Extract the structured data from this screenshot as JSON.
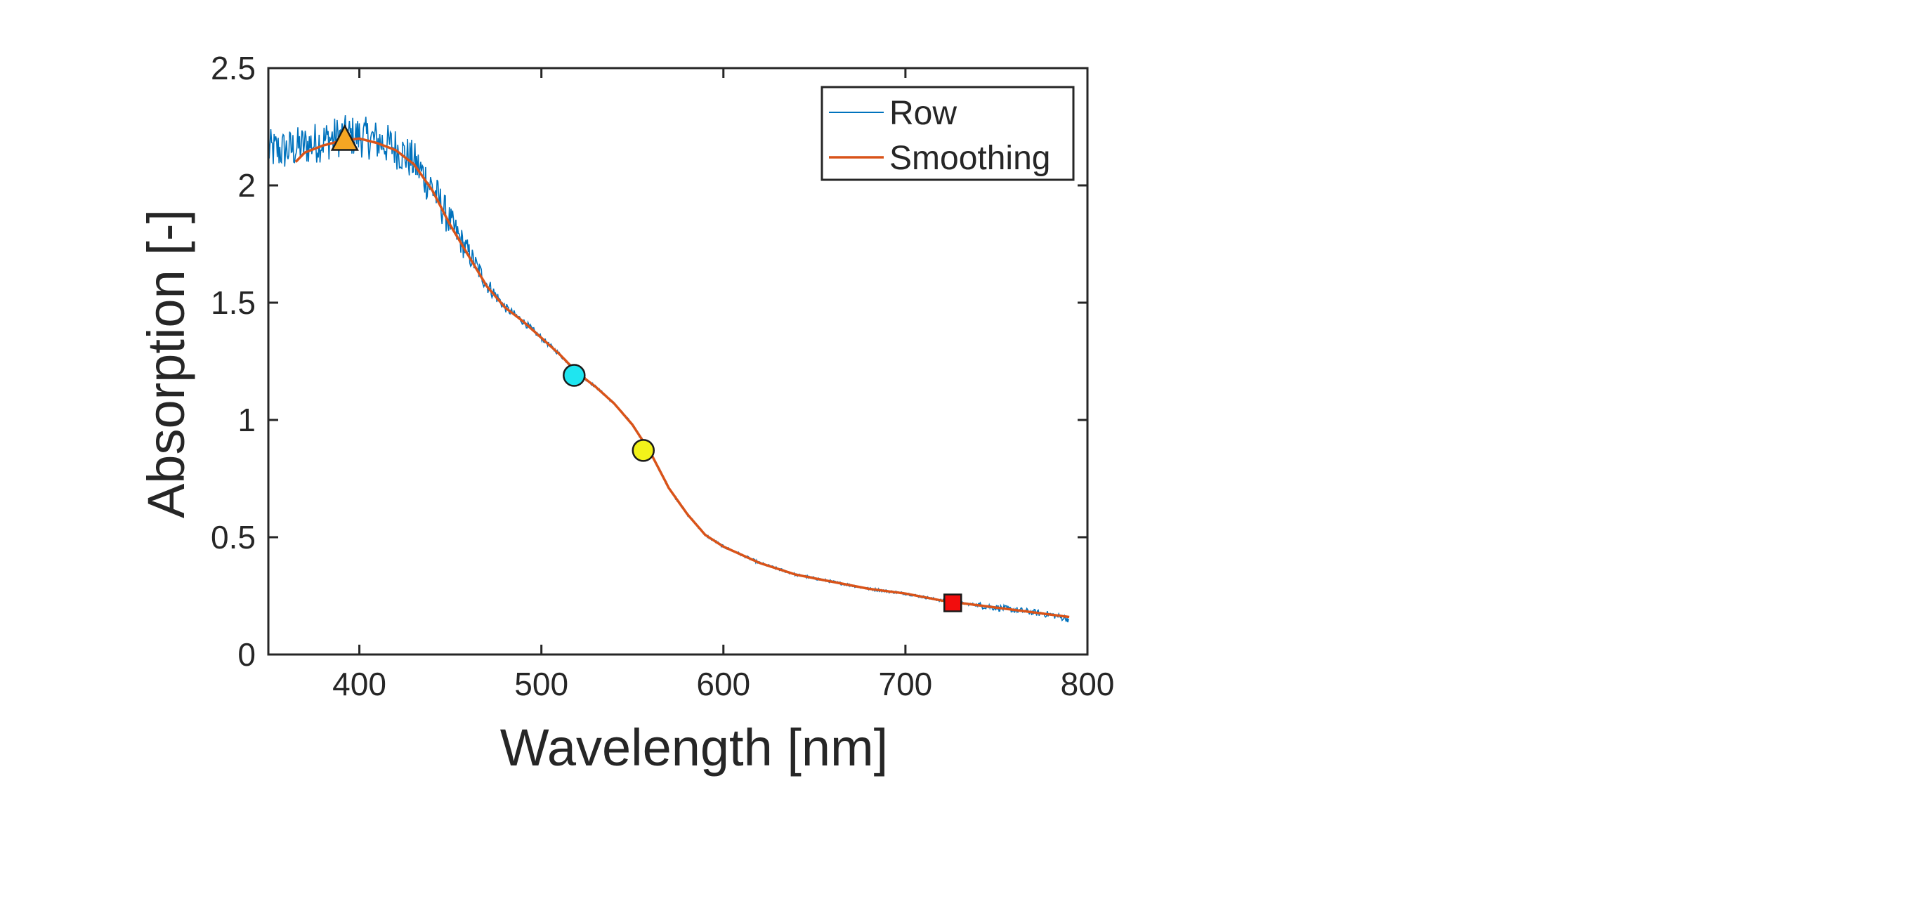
{
  "chart_data": {
    "type": "line",
    "title": "",
    "xlabel": "Wavelength [nm]",
    "ylabel": "Absorption [-]",
    "xlim": [
      350,
      800
    ],
    "ylim": [
      0,
      2.5
    ],
    "xticks": [
      400,
      500,
      600,
      700,
      800
    ],
    "yticks": [
      0,
      0.5,
      1,
      1.5,
      2,
      2.5
    ],
    "xtick_labels": [
      "400",
      "500",
      "600",
      "700",
      "800"
    ],
    "ytick_labels": [
      "0",
      "0.5",
      "1",
      "1.5",
      "2",
      "2.5"
    ],
    "grid": false,
    "box": true,
    "legend": {
      "position": "top-right",
      "entries": [
        "Row",
        "Smoothing"
      ]
    },
    "series": [
      {
        "name": "Row",
        "color": "#0072BD",
        "style": "noisy-thin",
        "x": [
          350,
          360,
          370,
          380,
          390,
          400,
          410,
          420,
          430,
          440,
          450,
          460,
          470,
          480,
          490,
          500,
          510,
          520,
          530,
          540,
          550,
          560,
          570,
          580,
          590,
          600,
          620,
          640,
          660,
          680,
          700,
          720,
          740,
          760,
          780,
          790
        ],
        "y": [
          2.15,
          2.15,
          2.17,
          2.19,
          2.21,
          2.21,
          2.19,
          2.16,
          2.1,
          1.99,
          1.84,
          1.71,
          1.58,
          1.48,
          1.42,
          1.35,
          1.28,
          1.2,
          1.14,
          1.07,
          0.98,
          0.86,
          0.71,
          0.6,
          0.51,
          0.46,
          0.39,
          0.34,
          0.31,
          0.28,
          0.26,
          0.23,
          0.21,
          0.19,
          0.17,
          0.15
        ]
      },
      {
        "name": "Smoothing",
        "color": "#D95319",
        "style": "line",
        "x": [
          365,
          370,
          380,
          390,
          400,
          410,
          420,
          430,
          440,
          450,
          460,
          470,
          480,
          490,
          500,
          510,
          520,
          530,
          540,
          550,
          560,
          570,
          580,
          590,
          600,
          620,
          640,
          660,
          680,
          700,
          720,
          740,
          760,
          780,
          790
        ],
        "y": [
          2.1,
          2.14,
          2.17,
          2.19,
          2.2,
          2.18,
          2.15,
          2.09,
          1.98,
          1.83,
          1.7,
          1.57,
          1.48,
          1.42,
          1.35,
          1.28,
          1.2,
          1.14,
          1.07,
          0.98,
          0.86,
          0.71,
          0.6,
          0.51,
          0.46,
          0.39,
          0.34,
          0.31,
          0.28,
          0.26,
          0.23,
          0.21,
          0.19,
          0.17,
          0.16
        ]
      }
    ],
    "markers": [
      {
        "shape": "triangle",
        "x": 392,
        "y": 2.19,
        "color": "#F5A623"
      },
      {
        "shape": "circle",
        "x": 518,
        "y": 1.19,
        "color": "#1FE5F0"
      },
      {
        "shape": "circle",
        "x": 556,
        "y": 0.87,
        "color": "#F2F21A"
      },
      {
        "shape": "square",
        "x": 726,
        "y": 0.22,
        "color": "#F20D0D"
      }
    ]
  }
}
